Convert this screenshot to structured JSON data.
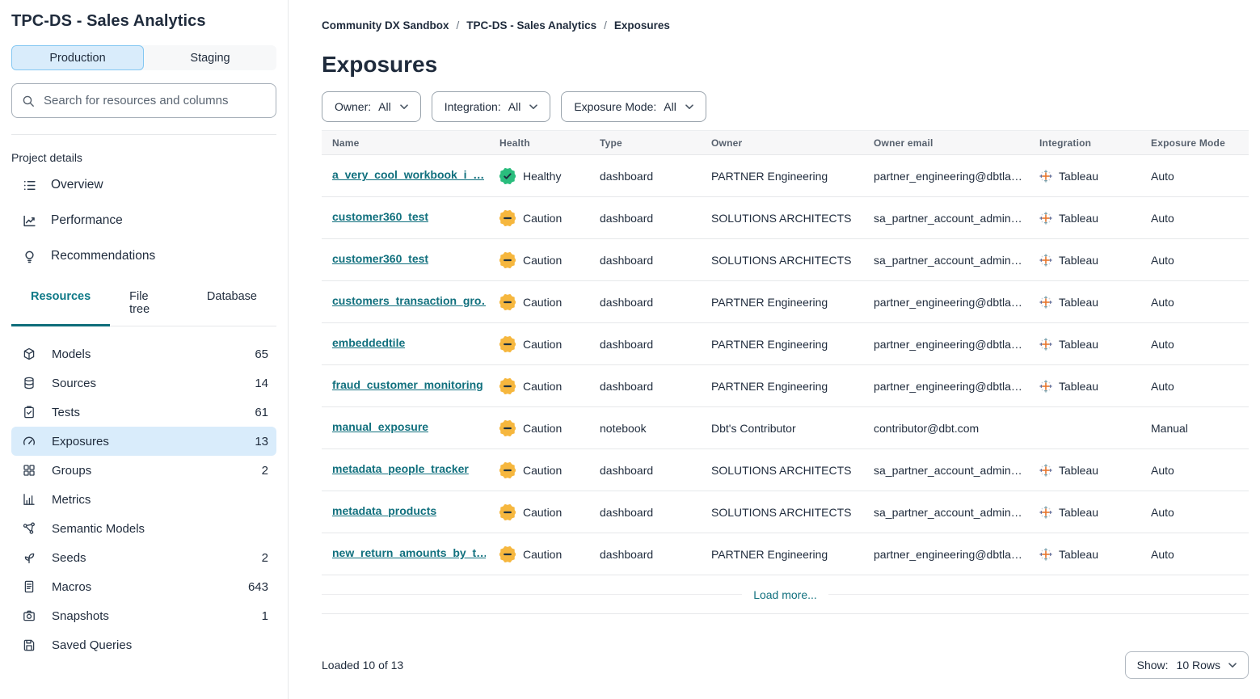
{
  "sidebar": {
    "title": "TPC-DS - Sales Analytics",
    "env_toggle": {
      "production": "Production",
      "staging": "Staging",
      "active": "Production"
    },
    "search_placeholder": "Search for resources and columns",
    "project_details_label": "Project details",
    "detail_items": [
      {
        "icon": "overview-icon",
        "label": "Overview"
      },
      {
        "icon": "performance-icon",
        "label": "Performance"
      },
      {
        "icon": "recommendations-icon",
        "label": "Recommendations"
      }
    ],
    "tabs": [
      {
        "label": "Resources",
        "active": true
      },
      {
        "label": "File tree",
        "active": false
      },
      {
        "label": "Database",
        "active": false
      }
    ],
    "resources": [
      {
        "icon": "models-icon",
        "label": "Models",
        "count": "65",
        "selected": false
      },
      {
        "icon": "sources-icon",
        "label": "Sources",
        "count": "14",
        "selected": false
      },
      {
        "icon": "tests-icon",
        "label": "Tests",
        "count": "61",
        "selected": false
      },
      {
        "icon": "exposures-icon",
        "label": "Exposures",
        "count": "13",
        "selected": true
      },
      {
        "icon": "groups-icon",
        "label": "Groups",
        "count": "2",
        "selected": false
      },
      {
        "icon": "metrics-icon",
        "label": "Metrics",
        "count": "",
        "selected": false
      },
      {
        "icon": "semantic-models-icon",
        "label": "Semantic Models",
        "count": "",
        "selected": false
      },
      {
        "icon": "seeds-icon",
        "label": "Seeds",
        "count": "2",
        "selected": false
      },
      {
        "icon": "macros-icon",
        "label": "Macros",
        "count": "643",
        "selected": false
      },
      {
        "icon": "snapshots-icon",
        "label": "Snapshots",
        "count": "1",
        "selected": false
      },
      {
        "icon": "saved-queries-icon",
        "label": "Saved Queries",
        "count": "",
        "selected": false
      }
    ]
  },
  "breadcrumb": {
    "items": [
      "Community DX Sandbox",
      "TPC-DS - Sales Analytics",
      "Exposures"
    ],
    "separator": "/"
  },
  "page": {
    "title": "Exposures"
  },
  "filters": [
    {
      "label": "Owner:",
      "value": "All"
    },
    {
      "label": "Integration:",
      "value": "All"
    },
    {
      "label": "Exposure Mode:",
      "value": "All"
    }
  ],
  "table": {
    "columns": [
      "Name",
      "Health",
      "Type",
      "Owner",
      "Owner email",
      "Integration",
      "Exposure Mode"
    ],
    "rows": [
      {
        "name": "a_very_cool_workbook_i_…",
        "health": "Healthy",
        "health_status": "healthy",
        "type": "dashboard",
        "owner": "PARTNER Engineering",
        "owner_email": "partner_engineering@dbtla…",
        "integration": "Tableau",
        "exposure_mode": "Auto"
      },
      {
        "name": "customer360_test",
        "health": "Caution",
        "health_status": "caution",
        "type": "dashboard",
        "owner": "SOLUTIONS ARCHITECTS",
        "owner_email": "sa_partner_account_admin…",
        "integration": "Tableau",
        "exposure_mode": "Auto"
      },
      {
        "name": "customer360_test",
        "health": "Caution",
        "health_status": "caution",
        "type": "dashboard",
        "owner": "SOLUTIONS ARCHITECTS",
        "owner_email": "sa_partner_account_admin…",
        "integration": "Tableau",
        "exposure_mode": "Auto"
      },
      {
        "name": "customers_transaction_gro…",
        "health": "Caution",
        "health_status": "caution",
        "type": "dashboard",
        "owner": "PARTNER Engineering",
        "owner_email": "partner_engineering@dbtla…",
        "integration": "Tableau",
        "exposure_mode": "Auto"
      },
      {
        "name": "embeddedtile",
        "health": "Caution",
        "health_status": "caution",
        "type": "dashboard",
        "owner": "PARTNER Engineering",
        "owner_email": "partner_engineering@dbtla…",
        "integration": "Tableau",
        "exposure_mode": "Auto"
      },
      {
        "name": "fraud_customer_monitoring",
        "health": "Caution",
        "health_status": "caution",
        "type": "dashboard",
        "owner": "PARTNER Engineering",
        "owner_email": "partner_engineering@dbtla…",
        "integration": "Tableau",
        "exposure_mode": "Auto"
      },
      {
        "name": "manual_exposure",
        "health": "Caution",
        "health_status": "caution",
        "type": "notebook",
        "owner": "Dbt's Contributor",
        "owner_email": "contributor@dbt.com",
        "integration": "",
        "exposure_mode": "Manual"
      },
      {
        "name": "metadata_people_tracker",
        "health": "Caution",
        "health_status": "caution",
        "type": "dashboard",
        "owner": "SOLUTIONS ARCHITECTS",
        "owner_email": "sa_partner_account_admin…",
        "integration": "Tableau",
        "exposure_mode": "Auto"
      },
      {
        "name": "metadata_products",
        "health": "Caution",
        "health_status": "caution",
        "type": "dashboard",
        "owner": "SOLUTIONS ARCHITECTS",
        "owner_email": "sa_partner_account_admin…",
        "integration": "Tableau",
        "exposure_mode": "Auto"
      },
      {
        "name": "new_return_amounts_by_t…",
        "health": "Caution",
        "health_status": "caution",
        "type": "dashboard",
        "owner": "PARTNER Engineering",
        "owner_email": "partner_engineering@dbtla…",
        "integration": "Tableau",
        "exposure_mode": "Auto"
      }
    ],
    "load_more": "Load more..."
  },
  "footer": {
    "loaded_text": "Loaded 10 of 13",
    "show_label": "Show:",
    "show_value": "10 Rows"
  },
  "colors": {
    "accent_teal": "#11707e",
    "tab_active_teal": "#0e7987",
    "healthy_green": "#2abd7d",
    "caution_yellow": "#f6b73e",
    "selected_blue_bg": "#d9ecfb",
    "production_border": "#84c7f2",
    "navy_text": "#1f2b3c",
    "tableau_orange": "#e8762d"
  }
}
